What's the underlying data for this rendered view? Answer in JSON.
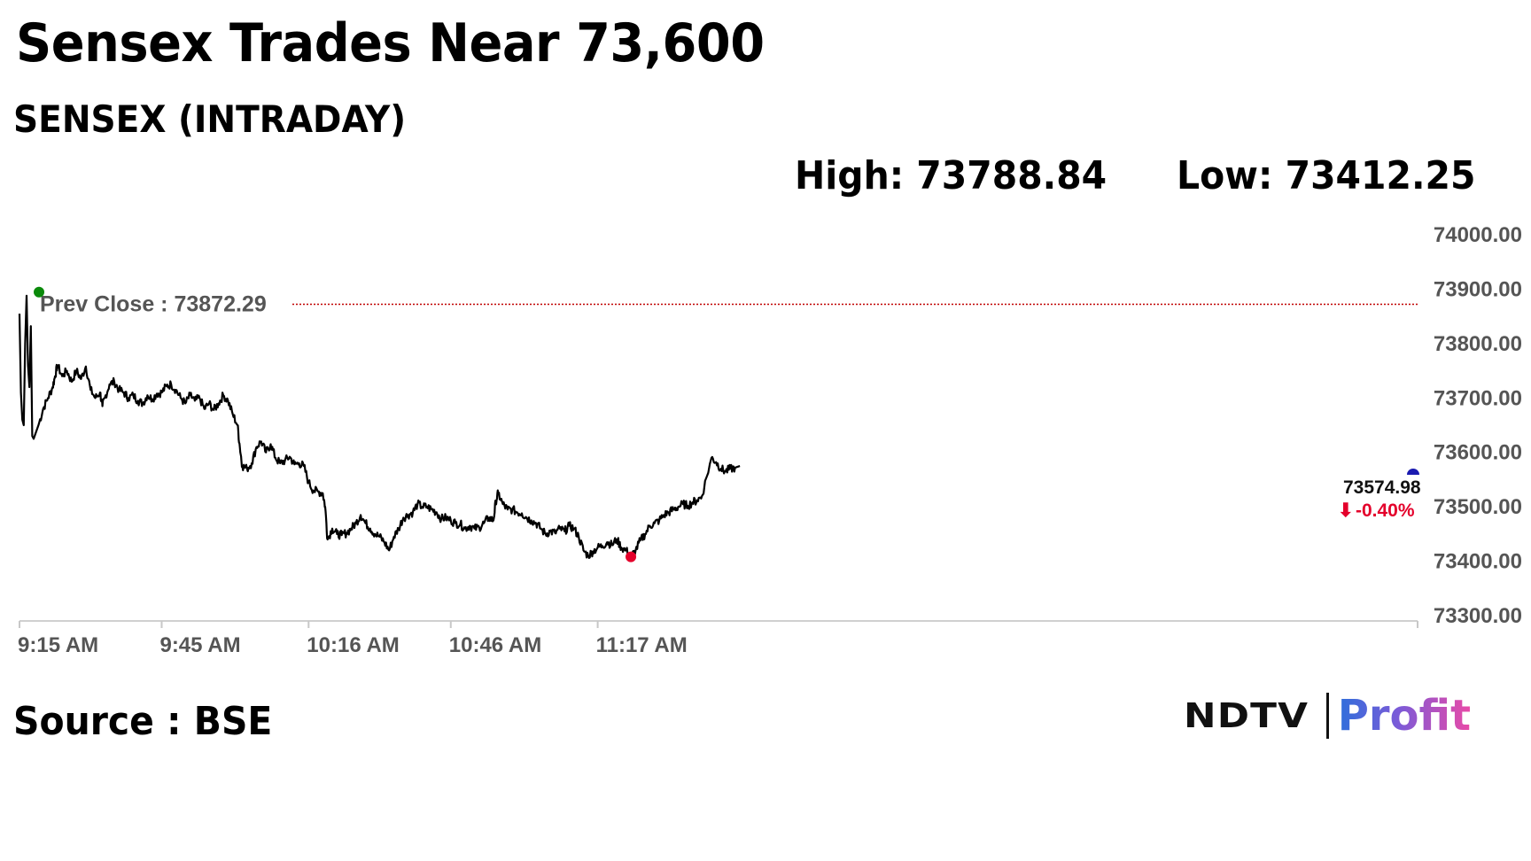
{
  "headline": "Sensex Trades Near 73,600",
  "subtitle": "SENSEX (INTRADAY)",
  "stats": {
    "high": "High: 73788.84",
    "low": "Low: 73412.25"
  },
  "source": "Source : BSE",
  "logo": {
    "ndtv": "NDTV",
    "profit": "Profit"
  },
  "chart_data": {
    "type": "line",
    "title": "SENSEX (INTRADAY)",
    "ylim": [
      73300,
      74000
    ],
    "y_ticks": [
      74000,
      73900,
      73800,
      73700,
      73600,
      73500,
      73400,
      73300
    ],
    "y_tick_labels": [
      "74000.00",
      "73900.00",
      "73800.00",
      "73700.00",
      "73600.00",
      "73500.00",
      "73400.00",
      "73300.00"
    ],
    "x_range_minutes": [
      0,
      295
    ],
    "x_ticks": [
      {
        "label": "9:15 AM",
        "minute": 0
      },
      {
        "label": "9:45 AM",
        "minute": 30
      },
      {
        "label": "10:16 AM",
        "minute": 61
      },
      {
        "label": "10:46 AM",
        "minute": 91
      },
      {
        "label": "11:17 AM",
        "minute": 122
      }
    ],
    "prev_close": {
      "label": "Prev Close : 73872.29",
      "value": 73872.29
    },
    "last": {
      "label": "73574.98",
      "change": "-0.40%",
      "value": 73574.98,
      "minute": 152
    },
    "high_point": {
      "minute": 1.5,
      "value": 73888
    },
    "low_point": {
      "minute": 129,
      "value": 73408
    },
    "colors": {
      "line": "#000000",
      "prev_close": "#c00000",
      "high": "#0a8a0a",
      "low": "#e4002b",
      "last": "#1a1ab0"
    },
    "series": [
      {
        "values": [
          [
            0,
            73855
          ],
          [
            0.3,
            73710
          ],
          [
            0.6,
            73660
          ],
          [
            0.9,
            73650
          ],
          [
            1.2,
            73800
          ],
          [
            1.5,
            73888
          ],
          [
            1.8,
            73760
          ],
          [
            2.1,
            73720
          ],
          [
            2.4,
            73832
          ],
          [
            2.7,
            73630
          ],
          [
            3,
            73625
          ],
          [
            4,
            73650
          ],
          [
            5,
            73680
          ],
          [
            6,
            73700
          ],
          [
            7,
            73720
          ],
          [
            7.5,
            73740
          ],
          [
            8,
            73760
          ],
          [
            9,
            73740
          ],
          [
            10,
            73750
          ],
          [
            11,
            73730
          ],
          [
            12,
            73750
          ],
          [
            13,
            73735
          ],
          [
            14,
            73758
          ],
          [
            15,
            73715
          ],
          [
            16,
            73700
          ],
          [
            17,
            73710
          ],
          [
            17.5,
            73685
          ],
          [
            18,
            73700
          ],
          [
            19,
            73725
          ],
          [
            20,
            73730
          ],
          [
            21,
            73715
          ],
          [
            22,
            73710
          ],
          [
            23,
            73700
          ],
          [
            24,
            73705
          ],
          [
            25,
            73695
          ],
          [
            26,
            73690
          ],
          [
            27,
            73705
          ],
          [
            28,
            73698
          ],
          [
            29,
            73708
          ],
          [
            30,
            73710
          ],
          [
            31,
            73722
          ],
          [
            32,
            73725
          ],
          [
            33,
            73715
          ],
          [
            34,
            73700
          ],
          [
            35,
            73690
          ],
          [
            36,
            73705
          ],
          [
            37,
            73695
          ],
          [
            38,
            73700
          ],
          [
            39,
            73680
          ],
          [
            40,
            73690
          ],
          [
            41,
            73678
          ],
          [
            42,
            73690
          ],
          [
            43,
            73705
          ],
          [
            44,
            73695
          ],
          [
            45,
            73670
          ],
          [
            46,
            73650
          ],
          [
            46.5,
            73610
          ],
          [
            47,
            73575
          ],
          [
            48,
            73570
          ],
          [
            49,
            73580
          ],
          [
            50,
            73610
          ],
          [
            51,
            73620
          ],
          [
            52,
            73600
          ],
          [
            53,
            73615
          ],
          [
            54,
            73590
          ],
          [
            55,
            73580
          ],
          [
            56,
            73585
          ],
          [
            57,
            73592
          ],
          [
            58,
            73578
          ],
          [
            59,
            73580
          ],
          [
            60,
            73575
          ],
          [
            61,
            73545
          ],
          [
            62,
            73530
          ],
          [
            63,
            73528
          ],
          [
            64,
            73525
          ],
          [
            64.5,
            73500
          ],
          [
            65,
            73440
          ],
          [
            66,
            73460
          ],
          [
            67,
            73450
          ],
          [
            68,
            73448
          ],
          [
            69,
            73452
          ],
          [
            70,
            73460
          ],
          [
            71,
            73470
          ],
          [
            72,
            73485
          ],
          [
            73,
            73470
          ],
          [
            74,
            73460
          ],
          [
            75,
            73450
          ],
          [
            76,
            73445
          ],
          [
            77,
            73435
          ],
          [
            78,
            73420
          ],
          [
            79,
            73445
          ],
          [
            80,
            73460
          ],
          [
            81,
            73480
          ],
          [
            82,
            73485
          ],
          [
            83,
            73490
          ],
          [
            84,
            73505
          ],
          [
            85,
            73500
          ],
          [
            86,
            73500
          ],
          [
            87,
            73495
          ],
          [
            88,
            73490
          ],
          [
            89,
            73478
          ],
          [
            90,
            73480
          ],
          [
            91,
            73475
          ],
          [
            92,
            73470
          ],
          [
            93,
            73468
          ],
          [
            94,
            73460
          ],
          [
            95,
            73465
          ],
          [
            96,
            73460
          ],
          [
            97,
            73462
          ],
          [
            98,
            73470
          ],
          [
            99,
            73480
          ],
          [
            100,
            73475
          ],
          [
            100.5,
            73510
          ],
          [
            101,
            73525
          ],
          [
            102,
            73505
          ],
          [
            103,
            73495
          ],
          [
            104,
            73495
          ],
          [
            105,
            73490
          ],
          [
            106,
            73488
          ],
          [
            107,
            73480
          ],
          [
            108,
            73475
          ],
          [
            109,
            73470
          ],
          [
            110,
            73460
          ],
          [
            111,
            73450
          ],
          [
            112,
            73455
          ],
          [
            113,
            73452
          ],
          [
            114,
            73460
          ],
          [
            115,
            73455
          ],
          [
            116,
            73465
          ],
          [
            117,
            73460
          ],
          [
            118,
            73445
          ],
          [
            119,
            73420
          ],
          [
            120,
            73410
          ],
          [
            121,
            73418
          ],
          [
            122,
            73425
          ],
          [
            123,
            73428
          ],
          [
            124,
            73435
          ],
          [
            125,
            73430
          ],
          [
            126,
            73440
          ],
          [
            127,
            73425
          ],
          [
            128,
            73420
          ],
          [
            129,
            73408
          ],
          [
            130,
            73420
          ],
          [
            131,
            73438
          ],
          [
            132,
            73450
          ],
          [
            133,
            73465
          ],
          [
            134,
            73470
          ],
          [
            135,
            73475
          ],
          [
            136,
            73485
          ],
          [
            137,
            73490
          ],
          [
            138,
            73495
          ],
          [
            139,
            73500
          ],
          [
            140,
            73505
          ],
          [
            141,
            73502
          ],
          [
            142,
            73508
          ],
          [
            143,
            73512
          ],
          [
            144,
            73520
          ],
          [
            146,
            73590
          ],
          [
            147,
            73582
          ],
          [
            148,
            73570
          ],
          [
            149,
            73565
          ],
          [
            150,
            73570
          ],
          [
            151,
            73572
          ],
          [
            152,
            73574.98
          ]
        ]
      }
    ]
  }
}
